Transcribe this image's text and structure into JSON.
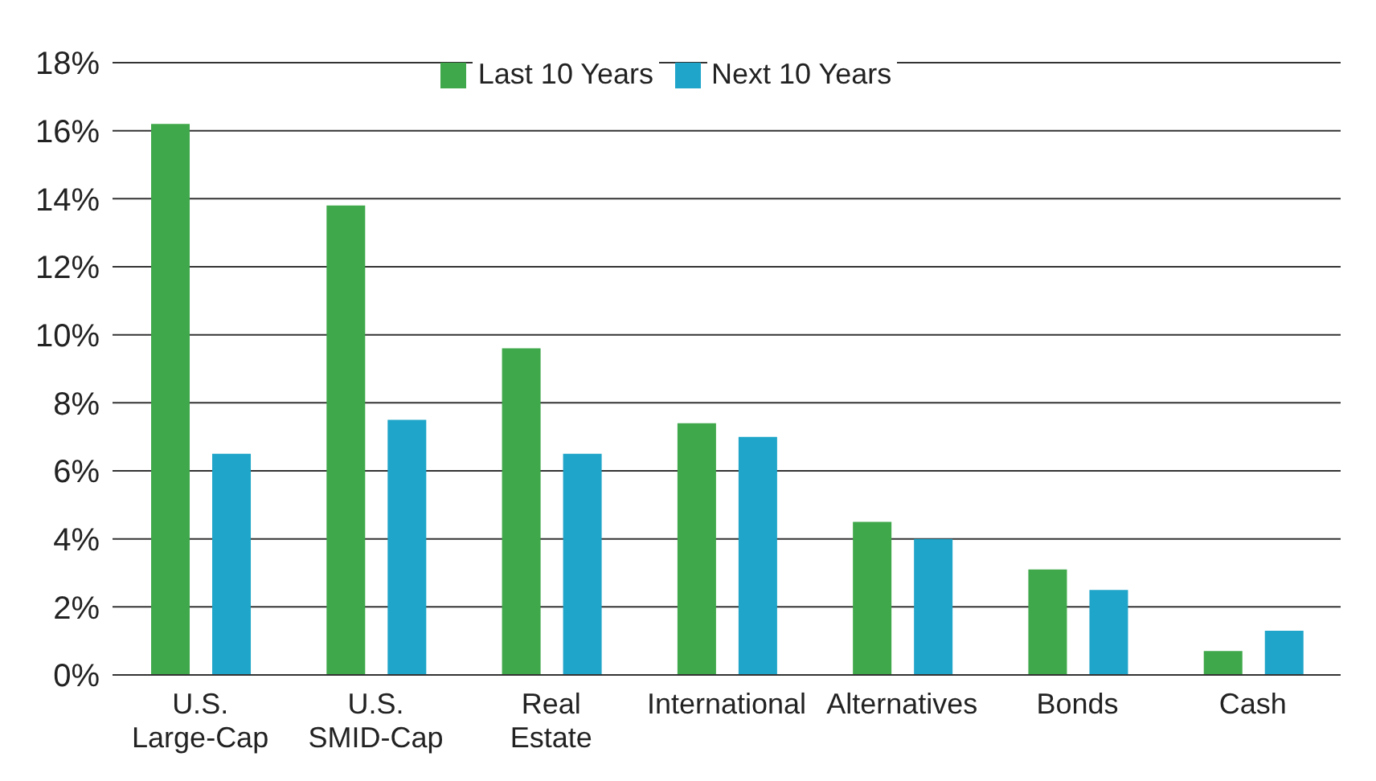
{
  "chart_data": {
    "type": "bar",
    "categories": [
      "U.S. Large-Cap",
      "U.S. SMID-Cap",
      "Real Estate",
      "International",
      "Alternatives",
      "Bonds",
      "Cash"
    ],
    "series": [
      {
        "name": "Last 10 Years",
        "color": "#3fa84a",
        "values": [
          16.2,
          13.8,
          9.6,
          7.4,
          4.5,
          3.1,
          0.7
        ]
      },
      {
        "name": "Next 10 Years",
        "color": "#1fa5c9",
        "values": [
          6.5,
          7.5,
          6.5,
          7.0,
          4.0,
          2.5,
          1.3
        ]
      }
    ],
    "ylim": [
      0,
      18
    ],
    "yticks": [
      {
        "value": 0,
        "label": "0%"
      },
      {
        "value": 2,
        "label": "2%"
      },
      {
        "value": 4,
        "label": "4%"
      },
      {
        "value": 6,
        "label": "6%"
      },
      {
        "value": 8,
        "label": "8%"
      },
      {
        "value": 10,
        "label": "10%"
      },
      {
        "value": 12,
        "label": "12%"
      },
      {
        "value": 14,
        "label": "14%"
      },
      {
        "value": 16,
        "label": "16%"
      },
      {
        "value": 18,
        "label": "18%"
      }
    ],
    "grid": "y",
    "legend": "top"
  }
}
